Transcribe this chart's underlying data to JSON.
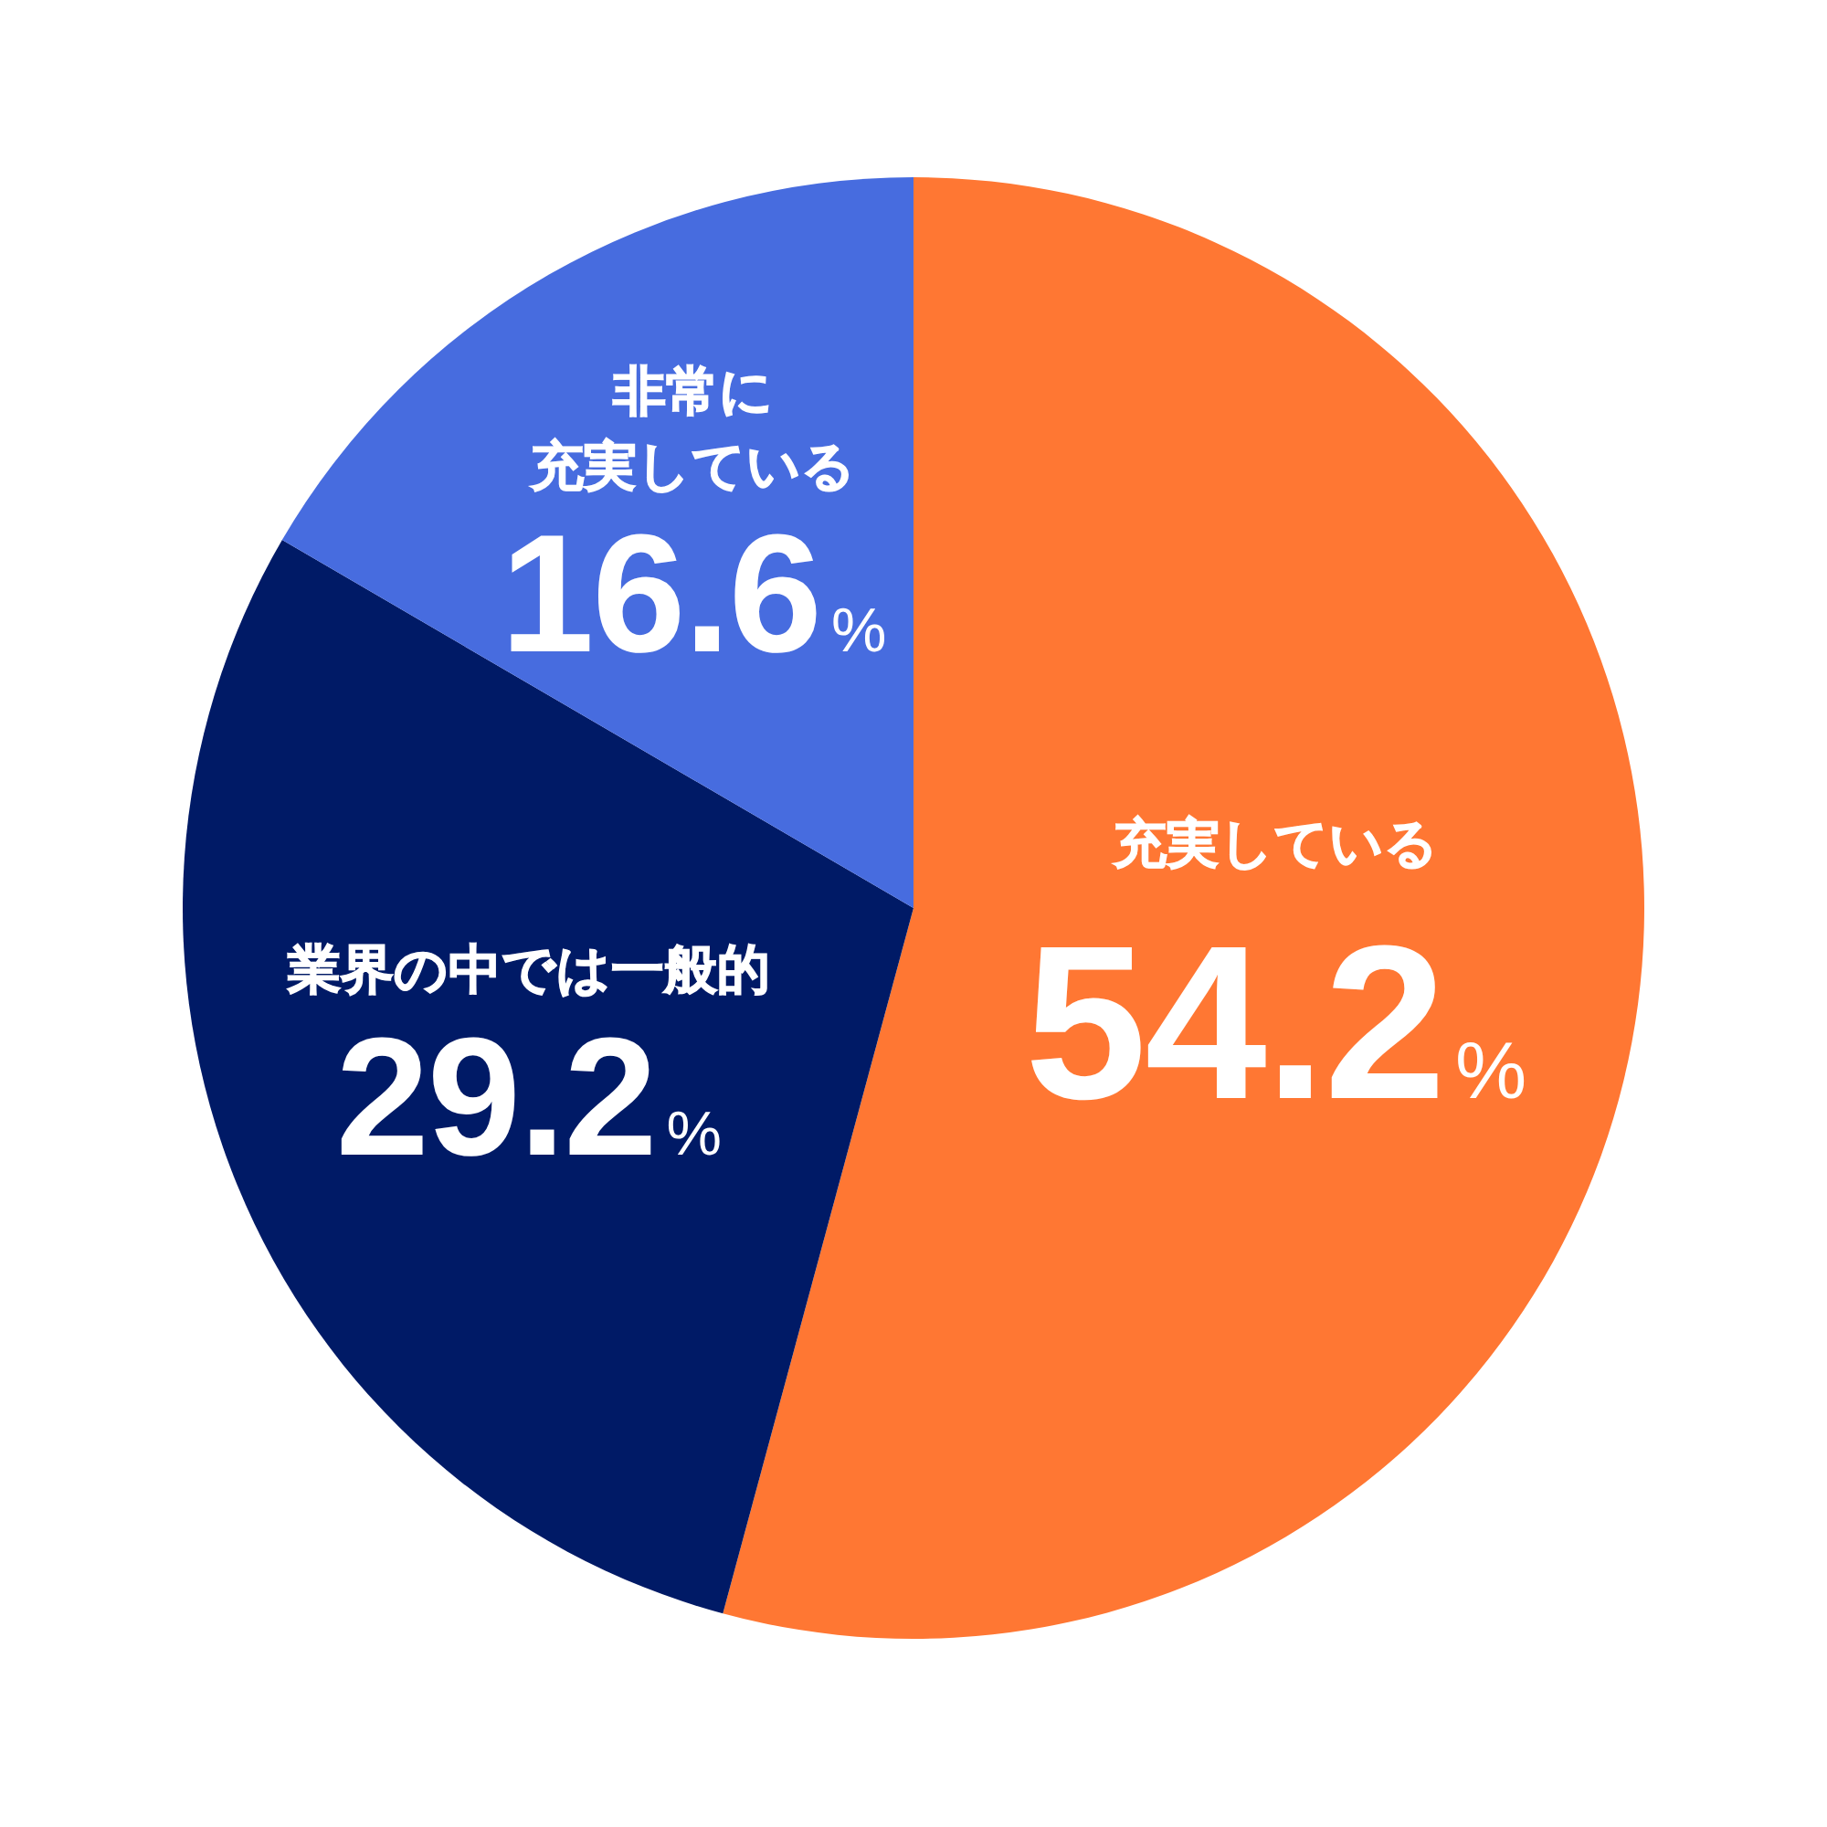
{
  "chart_data": {
    "type": "pie",
    "categories": [
      "充実している",
      "業界の中では一般的",
      "非常に充実している"
    ],
    "values": [
      54.2,
      29.2,
      16.6
    ],
    "colors": [
      "#ff7733",
      "#001a66",
      "#476cdf"
    ],
    "value_labels": [
      "54.2%",
      "29.2%",
      "16.6%"
    ],
    "legend": false
  }
}
